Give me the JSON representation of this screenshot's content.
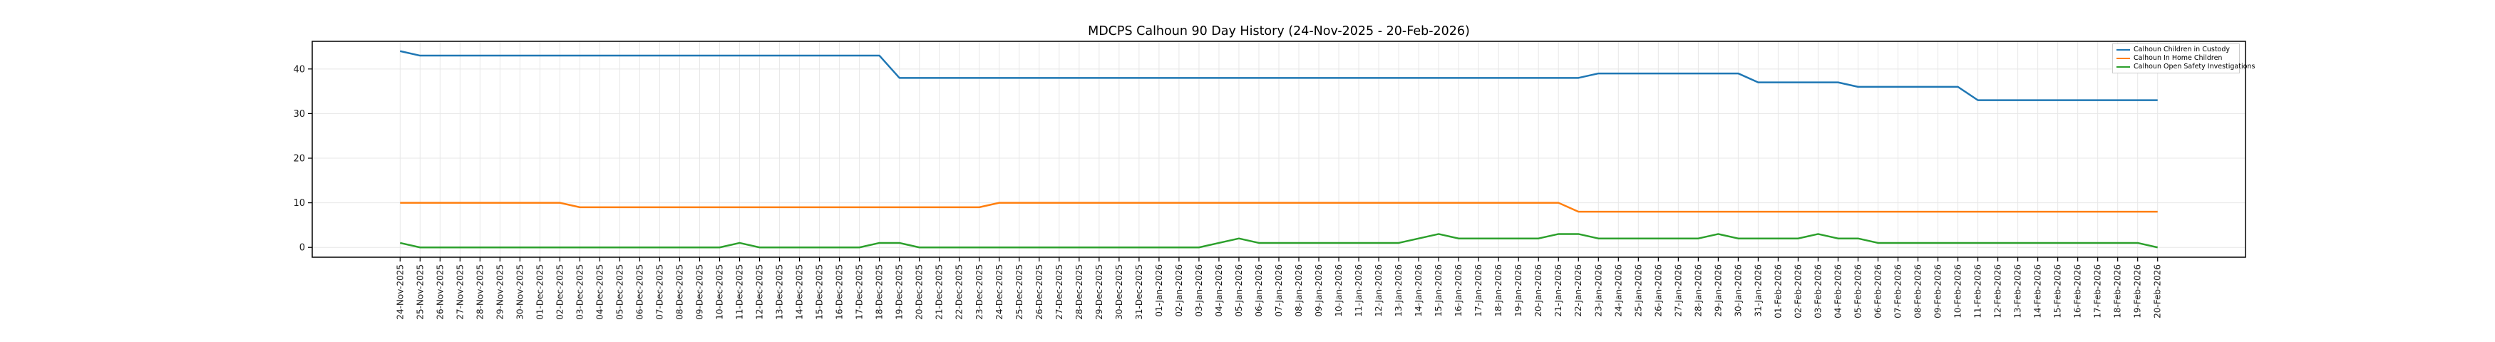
{
  "title": "MDCPS Calhoun 90 Day History (24-Nov-2025 - 20-Feb-2026)",
  "colors": {
    "custody": "#1f77b4",
    "in_home": "#ff7f0e",
    "investigations": "#2ca02c",
    "grid": "#e7e7e7",
    "spine": "#000000",
    "tick_label": "#1a1a1a",
    "legend_border": "#cccccc",
    "background": "#ffffff"
  },
  "legend": {
    "position": "upper right",
    "entries": [
      "Calhoun Children in Custody",
      "Calhoun In Home Children",
      "Calhoun Open Safety Investigations"
    ]
  },
  "chart_data": {
    "type": "line",
    "title": "MDCPS Calhoun 90 Day History (24-Nov-2025 - 20-Feb-2026)",
    "xlabel": "",
    "ylabel": "",
    "grid": true,
    "yticks": [
      0,
      10,
      20,
      30,
      40
    ],
    "ylim": [
      -2.2,
      46.2
    ],
    "x": [
      "24-Nov-2025",
      "25-Nov-2025",
      "26-Nov-2025",
      "27-Nov-2025",
      "28-Nov-2025",
      "29-Nov-2025",
      "30-Nov-2025",
      "01-Dec-2025",
      "02-Dec-2025",
      "03-Dec-2025",
      "04-Dec-2025",
      "05-Dec-2025",
      "06-Dec-2025",
      "07-Dec-2025",
      "08-Dec-2025",
      "09-Dec-2025",
      "10-Dec-2025",
      "11-Dec-2025",
      "12-Dec-2025",
      "13-Dec-2025",
      "14-Dec-2025",
      "15-Dec-2025",
      "16-Dec-2025",
      "17-Dec-2025",
      "18-Dec-2025",
      "19-Dec-2025",
      "20-Dec-2025",
      "21-Dec-2025",
      "22-Dec-2025",
      "23-Dec-2025",
      "24-Dec-2025",
      "25-Dec-2025",
      "26-Dec-2025",
      "27-Dec-2025",
      "28-Dec-2025",
      "29-Dec-2025",
      "30-Dec-2025",
      "31-Dec-2025",
      "01-Jan-2026",
      "02-Jan-2026",
      "03-Jan-2026",
      "04-Jan-2026",
      "05-Jan-2026",
      "06-Jan-2026",
      "07-Jan-2026",
      "08-Jan-2026",
      "09-Jan-2026",
      "10-Jan-2026",
      "11-Jan-2026",
      "12-Jan-2026",
      "13-Jan-2026",
      "14-Jan-2026",
      "15-Jan-2026",
      "16-Jan-2026",
      "17-Jan-2026",
      "18-Jan-2026",
      "19-Jan-2026",
      "20-Jan-2026",
      "21-Jan-2026",
      "22-Jan-2026",
      "23-Jan-2026",
      "24-Jan-2026",
      "25-Jan-2026",
      "26-Jan-2026",
      "27-Jan-2026",
      "28-Jan-2026",
      "29-Jan-2026",
      "30-Jan-2026",
      "31-Jan-2026",
      "01-Feb-2026",
      "02-Feb-2026",
      "03-Feb-2026",
      "04-Feb-2026",
      "05-Feb-2026",
      "06-Feb-2026",
      "07-Feb-2026",
      "08-Feb-2026",
      "09-Feb-2026",
      "10-Feb-2026",
      "11-Feb-2026",
      "12-Feb-2026",
      "13-Feb-2026",
      "14-Feb-2026",
      "15-Feb-2026",
      "16-Feb-2026",
      "17-Feb-2026",
      "18-Feb-2026",
      "19-Feb-2026",
      "20-Feb-2026"
    ],
    "series": [
      {
        "name": "Calhoun Children in Custody",
        "color": "#1f77b4",
        "values": [
          44,
          43,
          43,
          43,
          43,
          43,
          43,
          43,
          43,
          43,
          43,
          43,
          43,
          43,
          43,
          43,
          43,
          43,
          43,
          43,
          43,
          43,
          43,
          43,
          43,
          38,
          38,
          38,
          38,
          38,
          38,
          38,
          38,
          38,
          38,
          38,
          38,
          38,
          38,
          38,
          38,
          38,
          38,
          38,
          38,
          38,
          38,
          38,
          38,
          38,
          38,
          38,
          38,
          38,
          38,
          38,
          38,
          38,
          38,
          38,
          39,
          39,
          39,
          39,
          39,
          39,
          39,
          39,
          37,
          37,
          37,
          37,
          37,
          36,
          36,
          36,
          36,
          36,
          36,
          33,
          33,
          33,
          33,
          33,
          33,
          33,
          33,
          33,
          33
        ]
      },
      {
        "name": "Calhoun In Home Children",
        "color": "#ff7f0e",
        "values": [
          10,
          10,
          10,
          10,
          10,
          10,
          10,
          10,
          10,
          9,
          9,
          9,
          9,
          9,
          9,
          9,
          9,
          9,
          9,
          9,
          9,
          9,
          9,
          9,
          9,
          9,
          9,
          9,
          9,
          9,
          10,
          10,
          10,
          10,
          10,
          10,
          10,
          10,
          10,
          10,
          10,
          10,
          10,
          10,
          10,
          10,
          10,
          10,
          10,
          10,
          10,
          10,
          10,
          10,
          10,
          10,
          10,
          10,
          10,
          8,
          8,
          8,
          8,
          8,
          8,
          8,
          8,
          8,
          8,
          8,
          8,
          8,
          8,
          8,
          8,
          8,
          8,
          8,
          8,
          8,
          8,
          8,
          8,
          8,
          8,
          8,
          8,
          8,
          8
        ]
      },
      {
        "name": "Calhoun Open Safety Investigations",
        "color": "#2ca02c",
        "values": [
          1,
          0,
          0,
          0,
          0,
          0,
          0,
          0,
          0,
          0,
          0,
          0,
          0,
          0,
          0,
          0,
          0,
          1,
          0,
          0,
          0,
          0,
          0,
          0,
          1,
          1,
          0,
          0,
          0,
          0,
          0,
          0,
          0,
          0,
          0,
          0,
          0,
          0,
          0,
          0,
          0,
          1,
          2,
          1,
          1,
          1,
          1,
          1,
          1,
          1,
          1,
          2,
          3,
          2,
          2,
          2,
          2,
          2,
          3,
          3,
          2,
          2,
          2,
          2,
          2,
          2,
          3,
          2,
          2,
          2,
          2,
          3,
          2,
          2,
          1,
          1,
          1,
          1,
          1,
          1,
          1,
          1,
          1,
          1,
          1,
          1,
          1,
          1,
          0
        ]
      }
    ]
  }
}
